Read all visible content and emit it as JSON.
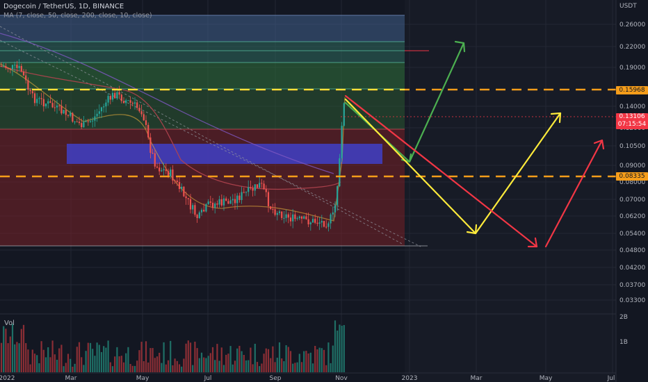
{
  "header": {
    "symbol_line": "Dogecoin / TetherUS, 1D, BINANCE",
    "indicator_line": "MA (7, close, 50, close, 200, close, 10, close)"
  },
  "volume_label": "Vol",
  "price_axis": {
    "unit": "USDT",
    "ticks": [
      "0.26000",
      "0.22000",
      "0.19000",
      "0.14000",
      "0.12000",
      "0.10500",
      "0.09000",
      "0.08000",
      "0.07000",
      "0.06200",
      "0.05400",
      "0.04800",
      "0.04200",
      "0.03700",
      "0.03300"
    ],
    "volume_ticks": [
      "2B",
      "1B"
    ]
  },
  "time_axis": {
    "ticks": [
      "2022",
      "Mar",
      "May",
      "Jul",
      "Sep",
      "Nov",
      "2023",
      "Mar",
      "May",
      "Jul"
    ]
  },
  "price_tags": {
    "top_level": "0.15968",
    "current_price": "0.13106",
    "countdown": "07:15:54",
    "bottom_level": "0.08335"
  },
  "colors": {
    "background": "#131722",
    "future_zone": "#171b26",
    "orange_level": "#f59d1a",
    "green_arrow": "#4caf50",
    "yellow_arrow": "#ffeb3b",
    "red_arrow": "#f23645",
    "demand_zone": "#3f3fc7"
  },
  "chart_data": {
    "type": "line",
    "title": "Dogecoin / TetherUS, 1D, BINANCE",
    "xlabel": "",
    "ylabel": "",
    "y_scale": "log",
    "ylim": [
      0.03,
      0.31
    ],
    "horizontal_levels": [
      0.15968,
      0.08335
    ],
    "current_price": 0.13106,
    "series": [
      {
        "name": "",
        "x": [
          "2022-01",
          "2022-02",
          "2022-03",
          "2022-04",
          "2022-05",
          "2022-06",
          "2022-07",
          "2022-08",
          "2022-09",
          "2022-10",
          "2022-11"
        ],
        "values": [
          0.17,
          0.14,
          0.12,
          0.15,
          0.09,
          0.065,
          0.068,
          0.07,
          0.062,
          0.06,
          0.13
        ]
      }
    ]
  }
}
